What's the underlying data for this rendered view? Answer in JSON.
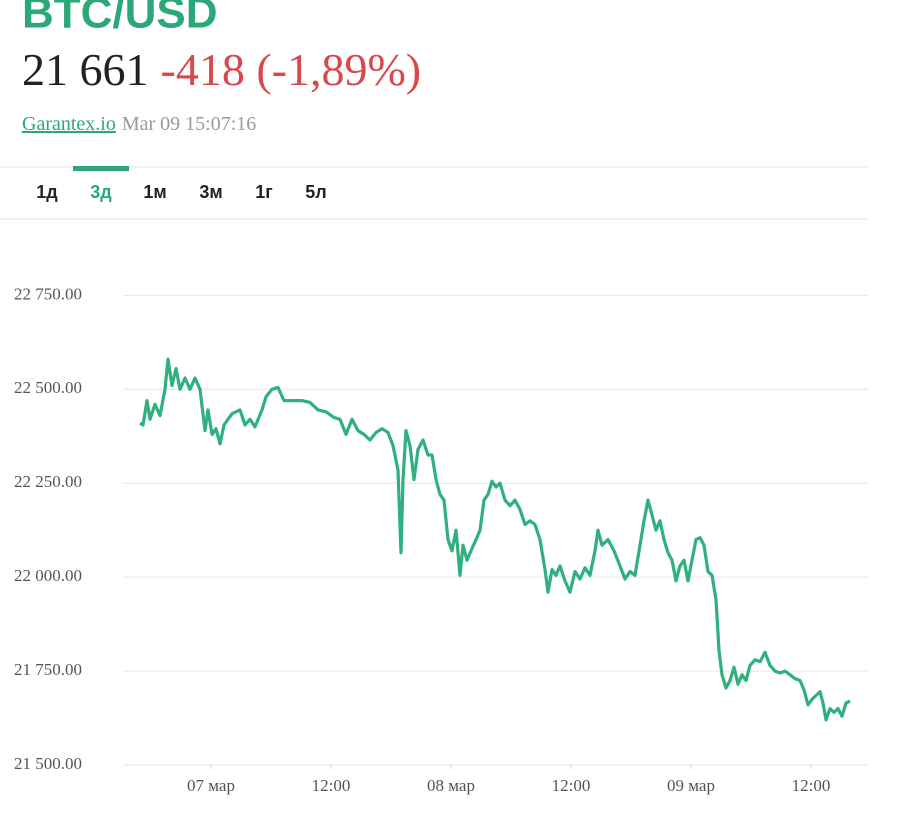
{
  "header": {
    "title": "BTC/USD",
    "price": "21 661",
    "change": "-418 (-1,89%)",
    "source": "Garantex.io",
    "timestamp": "Mar 09 15:07:16",
    "tabs": [
      "1д",
      "3д",
      "1м",
      "3м",
      "1г",
      "5л"
    ]
  },
  "chart_data": {
    "type": "line",
    "color": "#2fb07e",
    "grid": true,
    "x": [
      -7.1,
      -6.8,
      -6.4,
      -6.1,
      -5.6,
      -5.1,
      -4.6,
      -4.3,
      -3.9,
      -3.5,
      -3.1,
      -2.6,
      -2.1,
      -1.6,
      -1.1,
      -0.6,
      -0.3,
      0.1,
      0.5,
      0.9,
      1.3,
      1.7,
      2.1,
      2.5,
      2.9,
      3.4,
      3.9,
      4.4,
      5.1,
      5.5,
      6.1,
      6.7,
      7.3,
      7.9,
      8.5,
      9.1,
      9.9,
      10.7,
      11.5,
      12.3,
      12.9,
      13.5,
      14.1,
      14.7,
      15.3,
      15.9,
      16.5,
      17.1,
      17.7,
      18.2,
      18.7,
      19,
      19.2,
      19.5,
      19.9,
      20.3,
      20.7,
      21.2,
      21.7,
      22.1,
      22.5,
      22.9,
      23.3,
      23.7,
      24.1,
      24.5,
      24.9,
      25.2,
      25.6,
      26,
      26.5,
      26.9,
      27.3,
      27.7,
      28.1,
      28.5,
      28.9,
      29.4,
      29.9,
      30.4,
      30.9,
      31.4,
      31.9,
      32.4,
      32.9,
      33.4,
      33.7,
      34.1,
      34.5,
      34.9,
      35.4,
      35.9,
      36.4,
      36.9,
      37.4,
      37.9,
      38.4,
      38.7,
      39.1,
      39.7,
      40.3,
      40.9,
      41.4,
      41.9,
      42.4,
      42.9,
      43.3,
      43.7,
      44.1,
      44.5,
      44.9,
      45.3,
      45.7,
      46.1,
      46.5,
      46.9,
      47.3,
      47.7,
      48.1,
      48.5,
      48.9,
      49.3,
      49.7,
      50.1,
      50.5,
      50.8,
      51.1,
      51.5,
      51.9,
      52.3,
      52.7,
      53.1,
      53.5,
      53.9,
      54.4,
      54.9,
      55.4,
      55.9,
      56.4,
      56.9,
      57.4,
      57.9,
      58.4,
      58.9,
      59.3,
      59.7,
      60.1,
      60.5,
      60.9,
      61.2,
      61.5,
      61.9,
      62.3,
      62.7,
      63.1,
      63.5,
      63.9
    ],
    "values": [
      22410,
      22405,
      22470,
      22420,
      22460,
      22430,
      22500,
      22580,
      22510,
      22555,
      22500,
      22530,
      22500,
      22530,
      22500,
      22390,
      22445,
      22380,
      22395,
      22355,
      22405,
      22420,
      22435,
      22440,
      22445,
      22405,
      22420,
      22400,
      22445,
      22480,
      22500,
      22505,
      22470,
      22470,
      22470,
      22470,
      22465,
      22445,
      22440,
      22425,
      22420,
      22380,
      22420,
      22390,
      22380,
      22365,
      22385,
      22395,
      22385,
      22350,
      22285,
      22065,
      22260,
      22390,
      22350,
      22260,
      22340,
      22365,
      22325,
      22325,
      22260,
      22220,
      22205,
      22100,
      22070,
      22125,
      22005,
      22085,
      22045,
      22070,
      22100,
      22125,
      22205,
      22220,
      22255,
      22240,
      22250,
      22205,
      22190,
      22205,
      22180,
      22140,
      22150,
      22140,
      22100,
      22020,
      21960,
      22020,
      22005,
      22030,
      21990,
      21960,
      22015,
      21995,
      22025,
      22005,
      22070,
      22125,
      22085,
      22100,
      22070,
      22030,
      21995,
      22015,
      22005,
      22085,
      22150,
      22205,
      22165,
      22125,
      22150,
      22100,
      22065,
      22045,
      21990,
      22030,
      22045,
      21990,
      22045,
      22100,
      22105,
      22085,
      22015,
      22005,
      21940,
      21805,
      21740,
      21705,
      21725,
      21760,
      21715,
      21740,
      21725,
      21765,
      21780,
      21775,
      21800,
      21765,
      21750,
      21745,
      21750,
      21740,
      21730,
      21725,
      21700,
      21660,
      21675,
      21685,
      21695,
      21665,
      21620,
      21650,
      21640,
      21650,
      21630,
      21665,
      21670
    ],
    "xlim": [
      -8.8,
      65.7
    ],
    "xticks": [
      {
        "value": 0,
        "label": "07 мар"
      },
      {
        "value": 12,
        "label": "12:00"
      },
      {
        "value": 24,
        "label": "08 мар"
      },
      {
        "value": 36,
        "label": "12:00"
      },
      {
        "value": 48,
        "label": "09 мар"
      },
      {
        "value": 60,
        "label": "12:00"
      }
    ],
    "ylim": [
      21500,
      22900
    ],
    "yticks": [
      {
        "value": 21500,
        "label": "21 500.00"
      },
      {
        "value": 21750,
        "label": "21 750.00"
      },
      {
        "value": 22000,
        "label": "22 000.00"
      },
      {
        "value": 22250,
        "label": "22 250.00"
      },
      {
        "value": 22500,
        "label": "22 500.00"
      },
      {
        "value": 22750,
        "label": "22 750.00"
      }
    ]
  }
}
